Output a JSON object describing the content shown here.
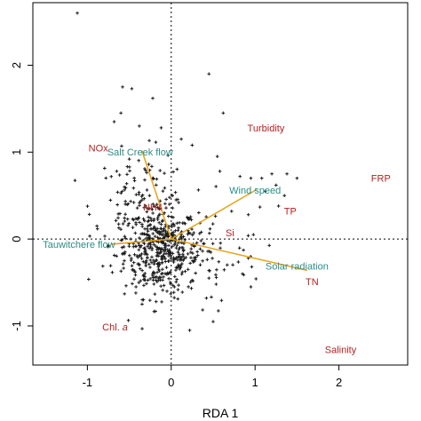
{
  "chart_data": {
    "type": "scatter",
    "title": "",
    "xlabel": "RDA 1",
    "ylabel": "",
    "xlim": [
      -1.65,
      2.82
    ],
    "ylim": [
      -1.45,
      2.72
    ],
    "x_ticks": [
      -1,
      0,
      1,
      2
    ],
    "x_tick_labels": [
      "-1",
      "0",
      "1",
      "2"
    ],
    "y_ticks": [
      -1,
      0,
      1,
      2
    ],
    "y_tick_labels": [
      "-1",
      "0",
      "1",
      "2"
    ],
    "grid": false,
    "reference_lines": {
      "x": 0,
      "y": 0,
      "style": "dotted"
    },
    "colors": {
      "points": "#1a1a1a",
      "arrows": "#e8a317",
      "flow_labels": "#2a8c86",
      "species_labels": "#b22222",
      "axes": "#000000"
    },
    "arrows": [
      {
        "name": "Salt Creek flow",
        "x": -0.35,
        "y": 1.02
      },
      {
        "name": "Wind speed",
        "x": 1.02,
        "y": 0.57
      },
      {
        "name": "Tauwitchere flow",
        "x": -0.72,
        "y": -0.06
      },
      {
        "name": "Solar radiation",
        "x": 1.62,
        "y": -0.36
      }
    ],
    "arrow_labels": [
      {
        "text": "Salt Creek flow",
        "x": -0.37,
        "y": 0.99
      },
      {
        "text": "Wind speed",
        "x": 1.0,
        "y": 0.55
      },
      {
        "text": "Tauwitchere flow",
        "x": -1.1,
        "y": -0.07
      },
      {
        "text": "Solar radiation",
        "x": 1.5,
        "y": -0.32
      }
    ],
    "variable_labels": [
      {
        "text": "NOx",
        "x": -0.87,
        "y": 1.04
      },
      {
        "text": "NH4",
        "x": -0.22,
        "y": 0.36
      },
      {
        "text": "Turbidity",
        "x": 1.13,
        "y": 1.27
      },
      {
        "text": "FRP",
        "x": 2.5,
        "y": 0.69
      },
      {
        "text": "TP",
        "x": 1.42,
        "y": 0.31
      },
      {
        "text": "Si",
        "x": 0.7,
        "y": 0.06
      },
      {
        "text": "TN",
        "x": 1.68,
        "y": -0.5
      },
      {
        "text": "Chl. a",
        "x": -0.67,
        "y": -1.02
      },
      {
        "text": "Salinity",
        "x": 2.02,
        "y": -1.28
      }
    ],
    "points_note": "about 600 sample scores, dense near the origin",
    "points": [
      [
        -1.12,
        2.6
      ],
      [
        0.45,
        1.9
      ],
      [
        -0.58,
        1.75
      ],
      [
        -0.47,
        1.73
      ],
      [
        -0.22,
        1.62
      ],
      [
        -0.6,
        1.45
      ],
      [
        0.62,
        1.45
      ],
      [
        -0.68,
        1.35
      ],
      [
        -0.38,
        1.3
      ],
      [
        -0.12,
        1.28
      ],
      [
        0.12,
        1.15
      ],
      [
        0.25,
        1.08
      ],
      [
        0.55,
        0.95
      ],
      [
        -0.65,
        0.78
      ],
      [
        -0.5,
        0.92
      ],
      [
        0.82,
        0.72
      ],
      [
        0.95,
        0.7
      ],
      [
        1.08,
        0.7
      ],
      [
        1.2,
        0.75
      ],
      [
        1.38,
        0.75
      ],
      [
        1.5,
        0.7
      ],
      [
        1.25,
        0.62
      ],
      [
        1.12,
        0.55
      ],
      [
        1.35,
        0.5
      ],
      [
        1.28,
        0.38
      ],
      [
        0.92,
        0.28
      ],
      [
        0.72,
        0.32
      ],
      [
        0.98,
        0.05
      ],
      [
        0.92,
        -0.22
      ],
      [
        0.85,
        -0.4
      ],
      [
        0.95,
        -0.55
      ],
      [
        0.45,
        -0.45
      ],
      [
        0.42,
        -0.68
      ],
      [
        0.5,
        -0.95
      ],
      [
        0.22,
        -1.05
      ],
      [
        -0.42,
        -0.55
      ],
      [
        -0.18,
        -0.72
      ],
      [
        -0.55,
        -0.15
      ],
      [
        -0.45,
        0.22
      ],
      [
        0.58,
        0.78
      ]
    ]
  }
}
